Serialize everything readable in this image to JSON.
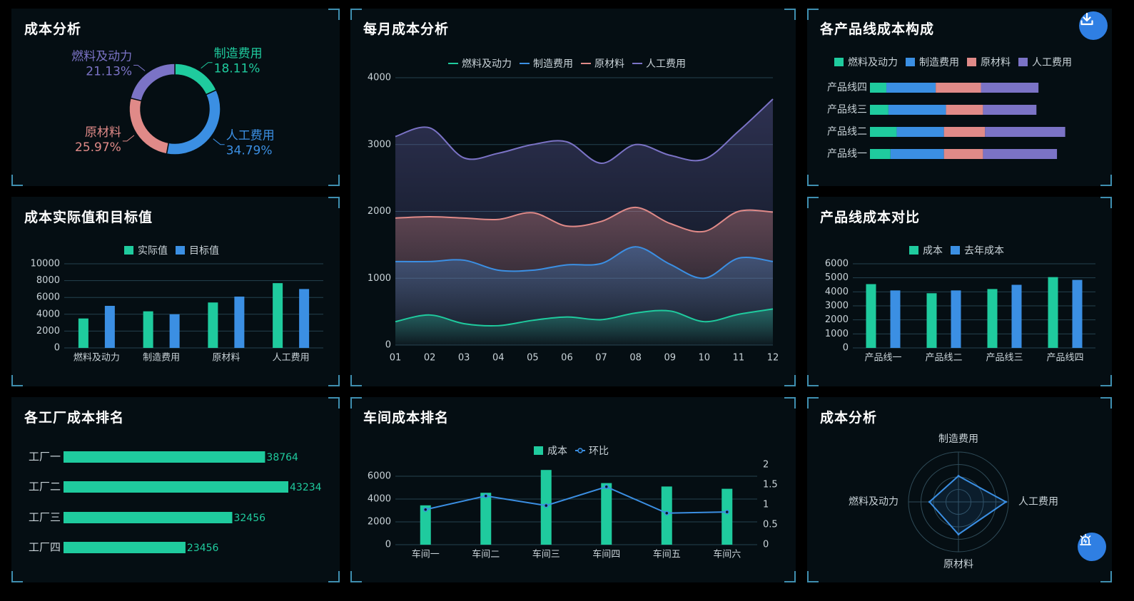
{
  "colors": {
    "fuel": "#1fcb9e",
    "manufacturing": "#3b8fe3",
    "material": "#e08a88",
    "labor": "#7b73c6",
    "actual": "#1fcb9e",
    "target": "#3b8fe3",
    "grid": "#25424f",
    "axis_text": "#c9d3d8",
    "panel_bg": "#050e13"
  },
  "panels": {
    "cost_pie": {
      "title": "成本分析"
    },
    "monthly": {
      "title": "每月成本分析"
    },
    "product_structure": {
      "title": "各产品线成本构成"
    },
    "actual_target": {
      "title": "成本实际值和目标值"
    },
    "product_compare": {
      "title": "产品线成本对比"
    },
    "factory_rank": {
      "title": "各工厂成本排名"
    },
    "workshop_rank": {
      "title": "车间成本排名"
    },
    "radar": {
      "title": "成本分析"
    }
  },
  "buttons": {
    "download_icon": "download-icon",
    "alarm_icon": "alarm-icon"
  },
  "chart_data": [
    {
      "id": "cost_pie",
      "type": "pie",
      "donut": true,
      "slices": [
        {
          "name": "制造费用",
          "value": 18.11,
          "label": "18.11%",
          "color": "#1fcb9e"
        },
        {
          "name": "人工费用",
          "value": 34.79,
          "label": "34.79%",
          "color": "#3b8fe3"
        },
        {
          "name": "原材料",
          "value": 25.97,
          "label": "25.97%",
          "color": "#e08a88"
        },
        {
          "name": "燃料及动力",
          "value": 21.13,
          "label": "21.13%",
          "color": "#7b73c6"
        }
      ]
    },
    {
      "id": "monthly",
      "type": "area",
      "categories": [
        "01",
        "02",
        "03",
        "04",
        "05",
        "06",
        "07",
        "08",
        "09",
        "10",
        "11",
        "12"
      ],
      "ylim": [
        0,
        4000
      ],
      "yticks": [
        0,
        1000,
        2000,
        3000,
        4000
      ],
      "series": [
        {
          "name": "燃料及动力",
          "color": "#1fcb9e",
          "values": [
            350,
            450,
            320,
            290,
            370,
            420,
            380,
            480,
            510,
            350,
            460,
            540
          ]
        },
        {
          "name": "制造费用",
          "color": "#3b8fe3",
          "values": [
            1250,
            1250,
            1270,
            1120,
            1120,
            1200,
            1220,
            1470,
            1210,
            1000,
            1300,
            1250
          ]
        },
        {
          "name": "原材料",
          "color": "#e08a88",
          "values": [
            1900,
            1920,
            1900,
            1880,
            1980,
            1780,
            1850,
            2060,
            1820,
            1700,
            2000,
            1990
          ]
        },
        {
          "name": "人工费用",
          "color": "#7b73c6",
          "values": [
            3120,
            3250,
            2800,
            2870,
            3000,
            3040,
            2720,
            3000,
            2840,
            2780,
            3200,
            3680
          ]
        }
      ],
      "legend": "top"
    },
    {
      "id": "product_structure",
      "type": "bar",
      "orientation": "horizontal",
      "stacked": true,
      "categories": [
        "产品线四",
        "产品线三",
        "产品线二",
        "产品线一"
      ],
      "series": [
        {
          "name": "燃料及动力",
          "color": "#1fcb9e",
          "values": [
            400,
            450,
            650,
            500
          ]
        },
        {
          "name": "制造费用",
          "color": "#3b8fe3",
          "values": [
            1200,
            1400,
            1150,
            1300
          ]
        },
        {
          "name": "原材料",
          "color": "#e08a88",
          "values": [
            1100,
            900,
            1000,
            950
          ]
        },
        {
          "name": "人工费用",
          "color": "#7b73c6",
          "values": [
            1400,
            1300,
            1950,
            1800
          ]
        }
      ],
      "legend": "top"
    },
    {
      "id": "actual_target",
      "type": "bar",
      "categories": [
        "燃料及动力",
        "制造费用",
        "原材料",
        "人工费用"
      ],
      "ylim": [
        0,
        10000
      ],
      "yticks": [
        0,
        2000,
        4000,
        6000,
        8000,
        10000
      ],
      "series": [
        {
          "name": "实际值",
          "color": "#1fcb9e",
          "values": [
            3500,
            4350,
            5400,
            7700
          ]
        },
        {
          "name": "目标值",
          "color": "#3b8fe3",
          "values": [
            5000,
            4000,
            6100,
            7000
          ]
        }
      ],
      "legend": "top"
    },
    {
      "id": "product_compare",
      "type": "bar",
      "categories": [
        "产品线一",
        "产品线二",
        "产品线三",
        "产品线四"
      ],
      "ylim": [
        0,
        6000
      ],
      "yticks": [
        0,
        1000,
        2000,
        3000,
        4000,
        5000,
        6000
      ],
      "series": [
        {
          "name": "成本",
          "color": "#1fcb9e",
          "values": [
            4550,
            3900,
            4200,
            5050
          ]
        },
        {
          "name": "去年成本",
          "color": "#3b8fe3",
          "values": [
            4100,
            4100,
            4500,
            4850
          ]
        }
      ],
      "legend": "top"
    },
    {
      "id": "factory_rank",
      "type": "bar",
      "orientation": "horizontal",
      "categories": [
        "工厂一",
        "工厂二",
        "工厂三",
        "工厂四"
      ],
      "values": [
        38764,
        43234,
        32456,
        23456
      ],
      "value_labels": [
        "38764",
        "43234",
        "32456",
        "23456"
      ],
      "color": "#1fcb9e"
    },
    {
      "id": "workshop_rank",
      "type": "bar",
      "categories": [
        "车间一",
        "车间二",
        "车间三",
        "车间四",
        "车间五",
        "车间六"
      ],
      "ylim": [
        0,
        7000
      ],
      "yticks": [
        0,
        2000,
        4000,
        6000
      ],
      "y2lim": [
        0,
        2
      ],
      "y2ticks": [
        "0",
        "0.5",
        "1",
        "1.5",
        "2"
      ],
      "series": [
        {
          "name": "成本",
          "kind": "bar",
          "color": "#1fcb9e",
          "values": [
            3450,
            4550,
            6550,
            5400,
            5100,
            4900
          ]
        },
        {
          "name": "环比",
          "kind": "line",
          "axis": "right",
          "color": "#3b8fe3",
          "values": [
            0.88,
            1.22,
            0.98,
            1.45,
            0.79,
            0.82
          ]
        }
      ],
      "legend": "top"
    },
    {
      "id": "radar",
      "type": "radar",
      "indicators": [
        "制造费用",
        "人工费用",
        "原材料",
        "燃料及动力"
      ],
      "max": 100,
      "series": [
        {
          "name": "成本",
          "color": "#3b8fe3",
          "values": [
            52,
            95,
            65,
            58
          ]
        }
      ]
    }
  ]
}
